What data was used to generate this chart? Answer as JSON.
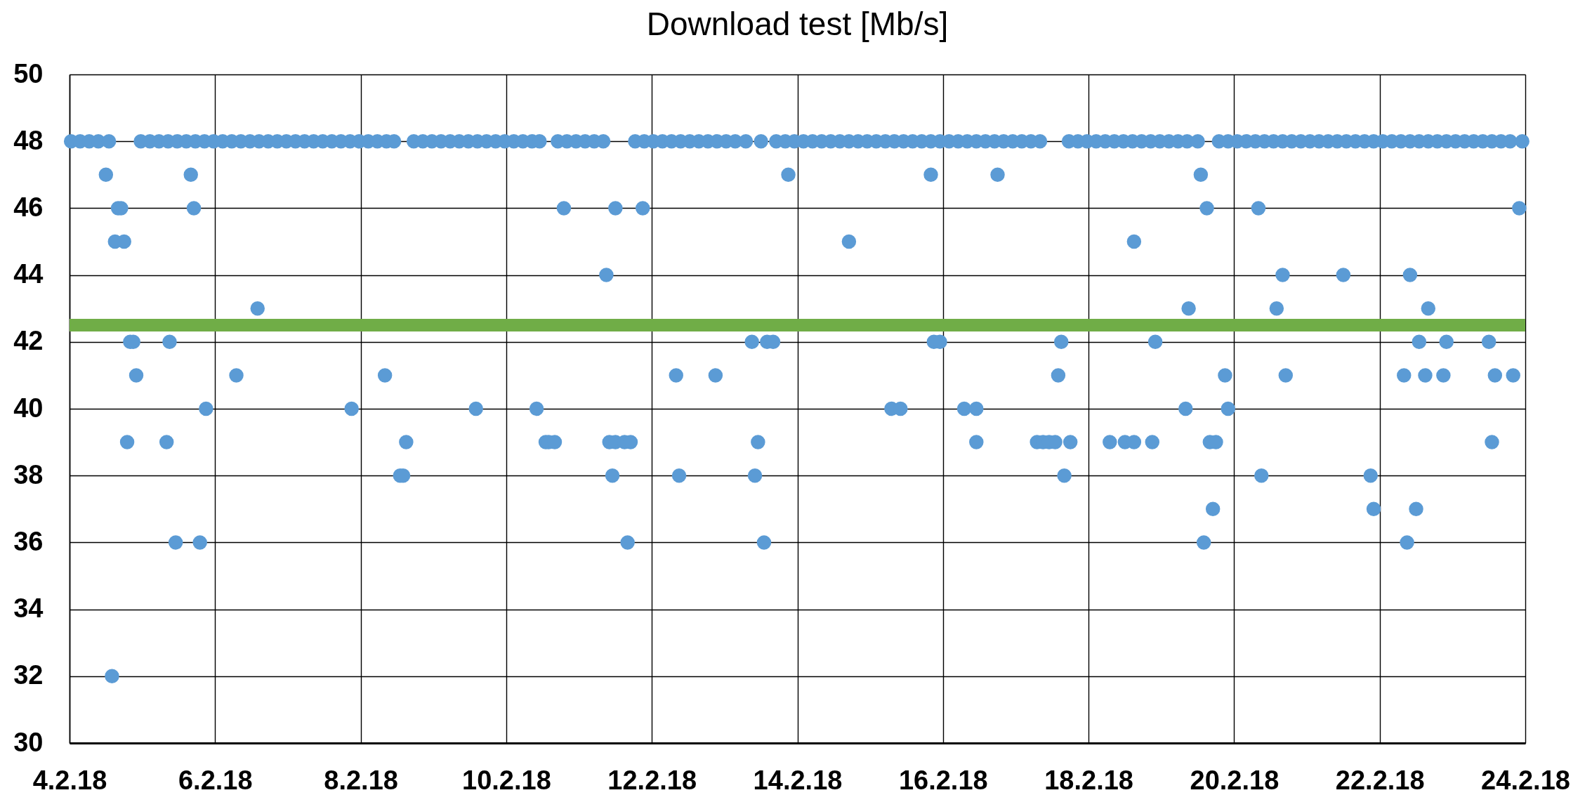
{
  "chart_data": {
    "type": "scatter",
    "title": "Download test [Mb/s]",
    "color": "#5b9bd5",
    "marker": "circle",
    "grid": true,
    "xlim": [
      "--02-04",
      "--02-24"
    ],
    "xticks": [
      {
        "value": "--02-04",
        "label": "4.2.18"
      },
      {
        "value": "--02-06",
        "label": "6.2.18"
      },
      {
        "value": "--02-08",
        "label": "8.2.18"
      },
      {
        "value": "--02-10",
        "label": "10.2.18"
      },
      {
        "value": "--02-12",
        "label": "12.2.18"
      },
      {
        "value": "--02-14",
        "label": "14.2.18"
      },
      {
        "value": "--02-16",
        "label": "16.2.18"
      },
      {
        "value": "--02-18",
        "label": "18.2.18"
      },
      {
        "value": "--02-20",
        "label": "20.2.18"
      },
      {
        "value": "--02-22",
        "label": "22.2.18"
      },
      {
        "value": "--02-24",
        "label": "24.2.18"
      }
    ],
    "ylim": [
      30,
      50
    ],
    "yticks": [
      30,
      32,
      34,
      36,
      38,
      40,
      42,
      44,
      46,
      48,
      50
    ],
    "ref_lines": [
      {
        "axis": "y",
        "value": 42.5,
        "color": "#70ad47"
      }
    ],
    "x": [
      "--02-04T12:00",
      "--02-04T16:00",
      "--02-04T17:00",
      "--02-04T15:00",
      "--02-04T18:00",
      "--02-04T20:00",
      "--02-04T21:00",
      "--02-04T22:00",
      "--02-04T19:00",
      "--02-04T14:00",
      "--02-05T16:00",
      "--02-05T17:00",
      "--02-05T09:00",
      "--02-05T08:00",
      "--02-05T11:00",
      "--02-05T19:00",
      "--02-05T21:00",
      "--02-06T14:00",
      "--02-06T07:00",
      "--02-07T21:00",
      "--02-08T08:00",
      "--02-08T15:00",
      "--02-08T13:00",
      "--02-08T14:00",
      "--02-09T14:00",
      "--02-10T10:00",
      "--02-10T13:00",
      "--02-10T14:00",
      "--02-10T16:00",
      "--02-10T19:00",
      "--02-11T12:00",
      "--02-11T21:00",
      "--02-11T09:00",
      "--02-11T10:00",
      "--02-11T12:00",
      "--02-11T15:00",
      "--02-11T17:00",
      "--02-11T11:00",
      "--02-11T16:00",
      "--02-12T08:00",
      "--02-12T09:00",
      "--02-12T21:00",
      "--02-13T09:00",
      "--02-13T14:00",
      "--02-13T16:00",
      "--02-13T11:00",
      "--02-13T10:00",
      "--02-13T13:00",
      "--02-13T21:00",
      "--02-14T17:00",
      "--02-15T07:00",
      "--02-15T10:00",
      "--02-15T20:00",
      "--02-15T21:00",
      "--02-15T23:00",
      "--02-16T07:00",
      "--02-16T11:00",
      "--02-16T11:00",
      "--02-16T18:00",
      "--02-17T07:00",
      "--02-17T09:00",
      "--02-17T11:00",
      "--02-17T13:00",
      "--02-17T18:00",
      "--02-17T14:00",
      "--02-17T15:00",
      "--02-17T16:00",
      "--02-18T07:00",
      "--02-18T12:00",
      "--02-18T15:00",
      "--02-18T15:00",
      "--02-18T21:00",
      "--02-18T22:00",
      "--02-19T08:00",
      "--02-19T09:00",
      "--02-19T13:00",
      "--02-19T14:00",
      "--02-19T15:00",
      "--02-19T16:00",
      "--02-19T17:00",
      "--02-19T18:00",
      "--02-19T21:00",
      "--02-19T22:00",
      "--02-20T08:00",
      "--02-20T09:00",
      "--02-20T14:00",
      "--02-20T16:00",
      "--02-20T17:00",
      "--02-21T12:00",
      "--02-21T21:00",
      "--02-21T22:00",
      "--02-22T08:00",
      "--02-22T09:00",
      "--02-22T10:00",
      "--02-22T12:00",
      "--02-22T13:00",
      "--02-22T15:00",
      "--02-22T16:00",
      "--02-22T21:00",
      "--02-22T22:00",
      "--02-23T12:00",
      "--02-23T13:00",
      "--02-23T14:00",
      "--02-23T20:00",
      "--02-23T22:00",
      "--02-04T00:30",
      "--02-04T03:30",
      "--02-04T06:30",
      "--02-04T09:30",
      "--02-04T13:00",
      "--02-04T23:30",
      "--02-05T02:30",
      "--02-05T05:30",
      "--02-05T08:30",
      "--02-05T11:30",
      "--02-05T14:30",
      "--02-05T17:30",
      "--02-05T20:30",
      "--02-05T23:30",
      "--02-06T02:30",
      "--02-06T05:30",
      "--02-06T08:30",
      "--02-06T11:30",
      "--02-06T14:30",
      "--02-06T17:30",
      "--02-06T20:30",
      "--02-06T23:30",
      "--02-07T02:30",
      "--02-07T05:30",
      "--02-07T08:30",
      "--02-07T11:30",
      "--02-07T14:30",
      "--02-07T17:30",
      "--02-07T20:30",
      "--02-07T23:30",
      "--02-08T02:30",
      "--02-08T05:30",
      "--02-08T08:30",
      "--02-08T11:00",
      "--02-08T17:30",
      "--02-08T20:30",
      "--02-08T23:30",
      "--02-09T02:30",
      "--02-09T05:30",
      "--02-09T08:30",
      "--02-09T11:30",
      "--02-09T14:30",
      "--02-09T17:30",
      "--02-09T20:30",
      "--02-09T23:30",
      "--02-10T02:30",
      "--02-10T05:30",
      "--02-10T08:30",
      "--02-10T11:00",
      "--02-10T17:00",
      "--02-10T20:00",
      "--02-10T23:00",
      "--02-11T02:00",
      "--02-11T05:00",
      "--02-11T08:00",
      "--02-11T18:30",
      "--02-11T21:30",
      "--02-12T00:30",
      "--02-12T03:30",
      "--02-12T06:30",
      "--02-12T09:30",
      "--02-12T12:30",
      "--02-12T15:30",
      "--02-12T18:30",
      "--02-12T21:30",
      "--02-13T00:30",
      "--02-13T03:30",
      "--02-13T07:00",
      "--02-13T12:00",
      "--02-13T17:00",
      "--02-13T20:00",
      "--02-13T23:00",
      "--02-14T02:00",
      "--02-14T05:00",
      "--02-14T08:00",
      "--02-14T11:00",
      "--02-14T14:00",
      "--02-14T17:00",
      "--02-14T20:00",
      "--02-14T23:00",
      "--02-15T02:00",
      "--02-15T05:00",
      "--02-15T08:00",
      "--02-15T11:00",
      "--02-15T14:00",
      "--02-15T17:00",
      "--02-15T20:00",
      "--02-15T23:00",
      "--02-16T02:00",
      "--02-16T05:00",
      "--02-16T08:00",
      "--02-16T11:00",
      "--02-16T14:00",
      "--02-16T17:00",
      "--02-16T20:00",
      "--02-16T23:00",
      "--02-17T02:00",
      "--02-17T05:00",
      "--02-17T08:00",
      "--02-17T17:30",
      "--02-17T20:30",
      "--02-17T23:30",
      "--02-18T02:30",
      "--02-18T05:30",
      "--02-18T08:30",
      "--02-18T11:30",
      "--02-18T14:30",
      "--02-18T17:30",
      "--02-18T20:30",
      "--02-18T23:30",
      "--02-19T02:30",
      "--02-19T05:30",
      "--02-19T08:30",
      "--02-19T12:00",
      "--02-19T19:00",
      "--02-19T22:00",
      "--02-20T01:00",
      "--02-20T04:00",
      "--02-20T07:00",
      "--02-20T10:00",
      "--02-20T13:00",
      "--02-20T16:00",
      "--02-20T19:00",
      "--02-20T22:00",
      "--02-21T01:00",
      "--02-21T04:00",
      "--02-21T07:00",
      "--02-21T10:00",
      "--02-21T13:00",
      "--02-21T16:00",
      "--02-21T19:00",
      "--02-21T22:00",
      "--02-22T01:00",
      "--02-22T04:00",
      "--02-22T07:00",
      "--02-22T10:00",
      "--02-22T13:00",
      "--02-22T16:00",
      "--02-22T19:00",
      "--02-22T22:00",
      "--02-23T01:00",
      "--02-23T04:00",
      "--02-23T07:00",
      "--02-23T10:00",
      "--02-23T13:00",
      "--02-23T16:00",
      "--02-23T19:00",
      "--02-23T23:00"
    ],
    "values": [
      47,
      46,
      46,
      45,
      45,
      42,
      42,
      41,
      39,
      32,
      47,
      46,
      42,
      39,
      36,
      36,
      40,
      43,
      41,
      40,
      41,
      39,
      38,
      38,
      40,
      40,
      39,
      39,
      39,
      46,
      46,
      46,
      44,
      39,
      39,
      39,
      39,
      38,
      36,
      41,
      38,
      41,
      42,
      42,
      42,
      39,
      38,
      36,
      47,
      45,
      40,
      40,
      47,
      42,
      42,
      40,
      40,
      39,
      47,
      39,
      39,
      39,
      39,
      39,
      41,
      42,
      38,
      39,
      39,
      39,
      45,
      39,
      42,
      40,
      43,
      47,
      36,
      46,
      39,
      37,
      39,
      41,
      40,
      46,
      38,
      43,
      44,
      41,
      44,
      38,
      37,
      41,
      36,
      44,
      37,
      42,
      41,
      43,
      41,
      42,
      42,
      39,
      41,
      41,
      46,
      48,
      48,
      48,
      48,
      48,
      48,
      48,
      48,
      48,
      48,
      48,
      48,
      48,
      48,
      48,
      48,
      48,
      48,
      48,
      48,
      48,
      48,
      48,
      48,
      48,
      48,
      48,
      48,
      48,
      48,
      48,
      48,
      48,
      48,
      48,
      48,
      48,
      48,
      48,
      48,
      48,
      48,
      48,
      48,
      48,
      48,
      48,
      48,
      48,
      48,
      48,
      48,
      48,
      48,
      48,
      48,
      48,
      48,
      48,
      48,
      48,
      48,
      48,
      48,
      48,
      48,
      48,
      48,
      48,
      48,
      48,
      48,
      48,
      48,
      48,
      48,
      48,
      48,
      48,
      48,
      48,
      48,
      48,
      48,
      48,
      48,
      48,
      48,
      48,
      48,
      48,
      48,
      48,
      48,
      48,
      48,
      48,
      48,
      48,
      48,
      48,
      48,
      48,
      48,
      48,
      48,
      48,
      48,
      48,
      48,
      48,
      48,
      48,
      48,
      48,
      48,
      48,
      48,
      48,
      48,
      48,
      48,
      48,
      48,
      48,
      48,
      48,
      48,
      48,
      48,
      48,
      48,
      48,
      48,
      48,
      48,
      48,
      48,
      48,
      48,
      48,
      48,
      48,
      48,
      48,
      48,
      48,
      48
    ]
  }
}
